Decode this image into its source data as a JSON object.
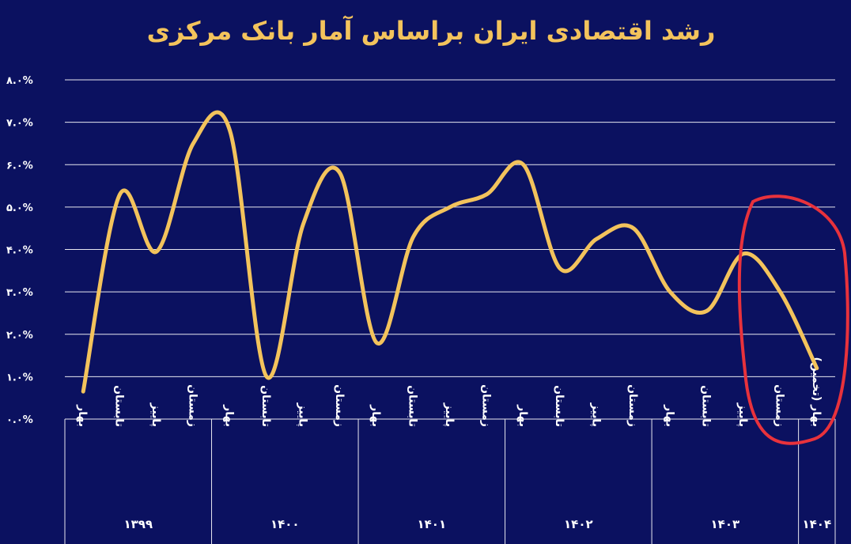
{
  "chart_data": {
    "type": "line",
    "title": "رشد اقتصادی ایران براساس آمار بانک مرکزی",
    "groups": [
      {
        "name": "۱۳۹۹",
        "categories": [
          "بهار",
          "تابستان",
          "پاییز",
          "زمستان"
        ]
      },
      {
        "name": "۱۴۰۰",
        "categories": [
          "بهار",
          "تابستان",
          "پاییز",
          "زمستان"
        ]
      },
      {
        "name": "۱۴۰۱",
        "categories": [
          "بهار",
          "تابستان",
          "پاییز",
          "زمستان"
        ]
      },
      {
        "name": "۱۴۰۲",
        "categories": [
          "بهار",
          "تابستان",
          "پاییز",
          "زمستان"
        ]
      },
      {
        "name": "۱۴۰۳",
        "categories": [
          "بهار",
          "تابستان",
          "پاییز",
          "زمستان"
        ]
      },
      {
        "name": "۱۴۰۴",
        "categories": [
          "بهار (تخمین)"
        ]
      }
    ],
    "values": [
      0.65,
      5.3,
      3.95,
      6.5,
      6.8,
      1.0,
      4.6,
      5.8,
      1.8,
      4.3,
      5.0,
      5.3,
      6.0,
      3.55,
      4.25,
      4.5,
      3.0,
      2.55,
      3.9,
      3.0,
      1.2
    ],
    "color": "#f3c35c",
    "ylim": [
      0,
      8
    ],
    "yticks": [
      {
        "value": 0,
        "label": "۰.۰%"
      },
      {
        "value": 1,
        "label": "۱.۰%"
      },
      {
        "value": 2,
        "label": "۲.۰%"
      },
      {
        "value": 3,
        "label": "۳.۰%"
      },
      {
        "value": 4,
        "label": "۴.۰%"
      },
      {
        "value": 5,
        "label": "۵.۰%"
      },
      {
        "value": 6,
        "label": "۶.۰%"
      },
      {
        "value": 7,
        "label": "۷.۰%"
      },
      {
        "value": 8,
        "label": "۸.۰%"
      }
    ],
    "grid": true
  }
}
